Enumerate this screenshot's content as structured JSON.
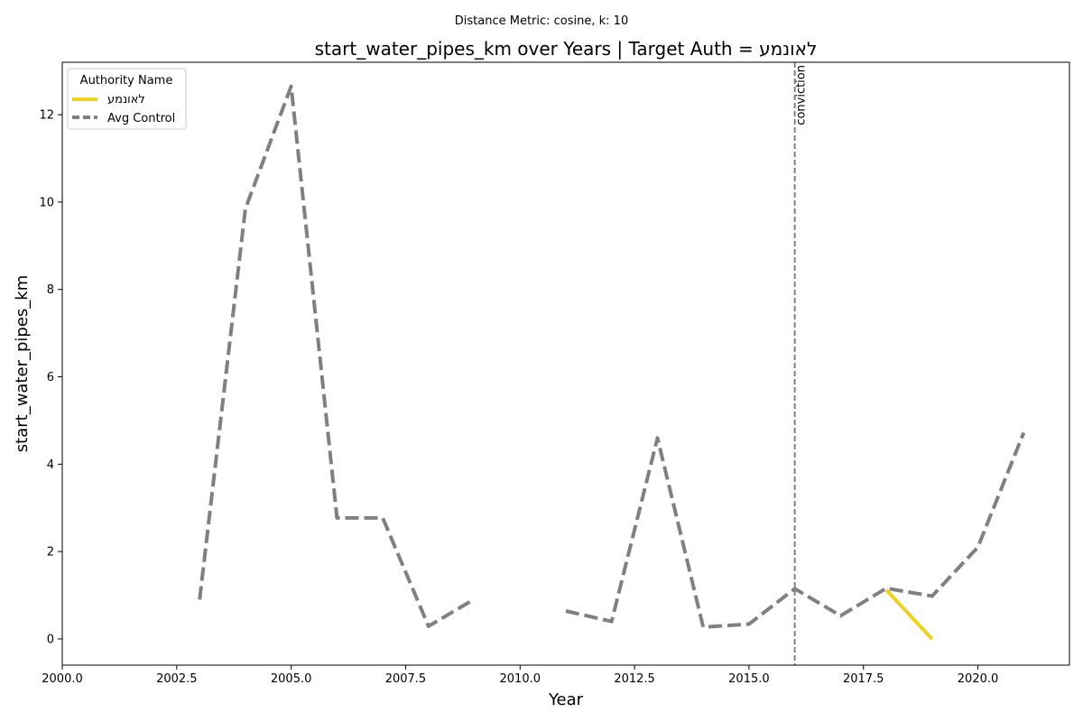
{
  "chart_data": {
    "type": "line",
    "suptitle": "Distance Metric: cosine, k: 10",
    "title": "start_water_pipes_km over Years | Target Auth = לאונמע",
    "xlabel": "Year",
    "ylabel": "start_water_pipes_km",
    "xlim": [
      2000,
      2022
    ],
    "ylim": [
      -0.6,
      13.2
    ],
    "xticks": [
      2000,
      2002.5,
      2005,
      2007.5,
      2010,
      2012.5,
      2015,
      2017.5,
      2020
    ],
    "xtick_labels": [
      "2000.0",
      "2002.5",
      "2005.0",
      "2007.5",
      "2010.0",
      "2012.5",
      "2015.0",
      "2017.5",
      "2020.0"
    ],
    "yticks": [
      0,
      2,
      4,
      6,
      8,
      10,
      12
    ],
    "ytick_labels": [
      "0",
      "2",
      "4",
      "6",
      "8",
      "10",
      "12"
    ],
    "grid": false,
    "legend": {
      "title": "Authority Name",
      "placement": "top-left"
    },
    "series": [
      {
        "name": "לאונמע",
        "color": "#f0d020",
        "style": "solid",
        "points": [
          [
            2018,
            1.12
          ],
          [
            2019,
            0.0
          ]
        ]
      },
      {
        "name": "Avg Control",
        "color": "#808080",
        "style": "dashed",
        "points": [
          [
            2003,
            0.9
          ],
          [
            2004,
            9.85
          ],
          [
            2005,
            12.65
          ],
          [
            2006,
            2.77
          ],
          [
            2007,
            2.77
          ],
          [
            2008,
            0.29
          ],
          [
            2009,
            0.91
          ],
          [
            2010,
            null
          ],
          [
            2011,
            0.64
          ],
          [
            2012,
            0.4
          ],
          [
            2013,
            4.6
          ],
          [
            2014,
            0.27
          ],
          [
            2015,
            0.34
          ],
          [
            2016,
            1.15
          ],
          [
            2017,
            0.53
          ],
          [
            2018,
            1.16
          ],
          [
            2019,
            0.98
          ],
          [
            2020,
            2.1
          ],
          [
            2021,
            4.72
          ]
        ]
      }
    ],
    "annotations": [
      {
        "type": "vline",
        "x": 2016,
        "label": "conviction",
        "color": "#808080",
        "style": "dashed"
      }
    ]
  }
}
